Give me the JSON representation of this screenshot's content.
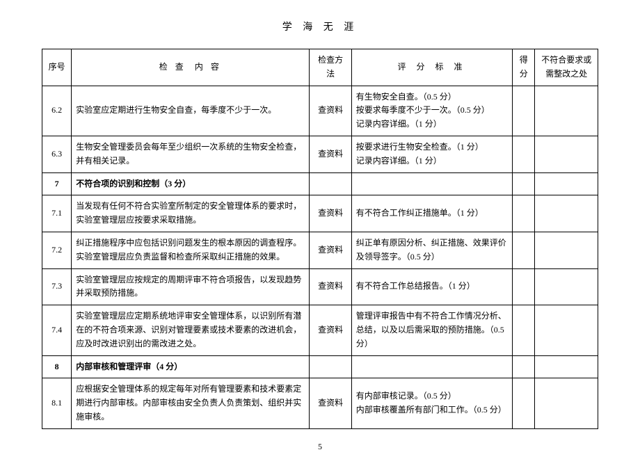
{
  "page_title": "学 海 无 涯",
  "page_number": "5",
  "columns": {
    "no": "序号",
    "content_a": "检 查",
    "content_b": "内 容",
    "method": "检查方法",
    "criteria": "评 分 标 准",
    "score": "得分",
    "remark": "不符合要求或需整改之处"
  },
  "rows": [
    {
      "no": "6.2",
      "content": "实验室应定期进行生物安全自查，每季度不少于一次。",
      "method": "查资料",
      "criteria": "有生物安全自查。（0.5 分）\n按要求每季度不少于一次。（0.5 分）\n记录内容详细。（1 分）"
    },
    {
      "no": "6.3",
      "content": "生物安全管理委员会每年至少组织一次系统的生物安全检查，并有相关记录。",
      "method": "查资料",
      "criteria": "按要求进行生物安全检查。（1 分）\n记录内容详细。（1 分）"
    },
    {
      "no": "7",
      "section": true,
      "content": "不符合项的识别和控制（3 分）"
    },
    {
      "no": "7.1",
      "content": "当发现有任何不符合实验室所制定的安全管理体系的要求时，实验室管理层应按要求采取措施。",
      "method": "查资料",
      "criteria": "有不符合工作纠正措施单。（1 分）"
    },
    {
      "no": "7.2",
      "content": "纠正措施程序中应包括识别问题发生的根本原因的调查程序。实验室管理层应负责监督和检查所采取纠正措施的效果。",
      "method": "查资料",
      "criteria": "纠正单有原因分析、纠正措施、效果评价及领导签字。（0.5 分）"
    },
    {
      "no": "7.3",
      "content": "实验室管理层应按规定的周期评审不符合项报告，以发现趋势并采取预防措施。",
      "method": "查资料",
      "criteria": "有不符合工作总结报告。（1 分）"
    },
    {
      "no": "7.4",
      "content": "实验室管理层应定期系统地评审安全管理体系，以识别所有潜在的不符合项来源、识别对管理要素或技术要素的改进机会，应及时改进识别出的需改进之处。",
      "method": "查资料",
      "criteria": "管理评审报告中有不符合工作情况分析、总结，以及以后需采取的预防措施。（0.5 分）"
    },
    {
      "no": "8",
      "section": true,
      "content": "内部审核和管理评审（4 分）"
    },
    {
      "no": "8.1",
      "content": "应根据安全管理体系的规定每年对所有管理要素和技术要素定期进行内部审核。内部审核由安全负责人负责策划、组织并实施审核。",
      "method": "查资料",
      "criteria": "有内部审核记录。（0.5 分）\n内部审核覆盖所有部门和工作。（0.5 分）"
    }
  ]
}
